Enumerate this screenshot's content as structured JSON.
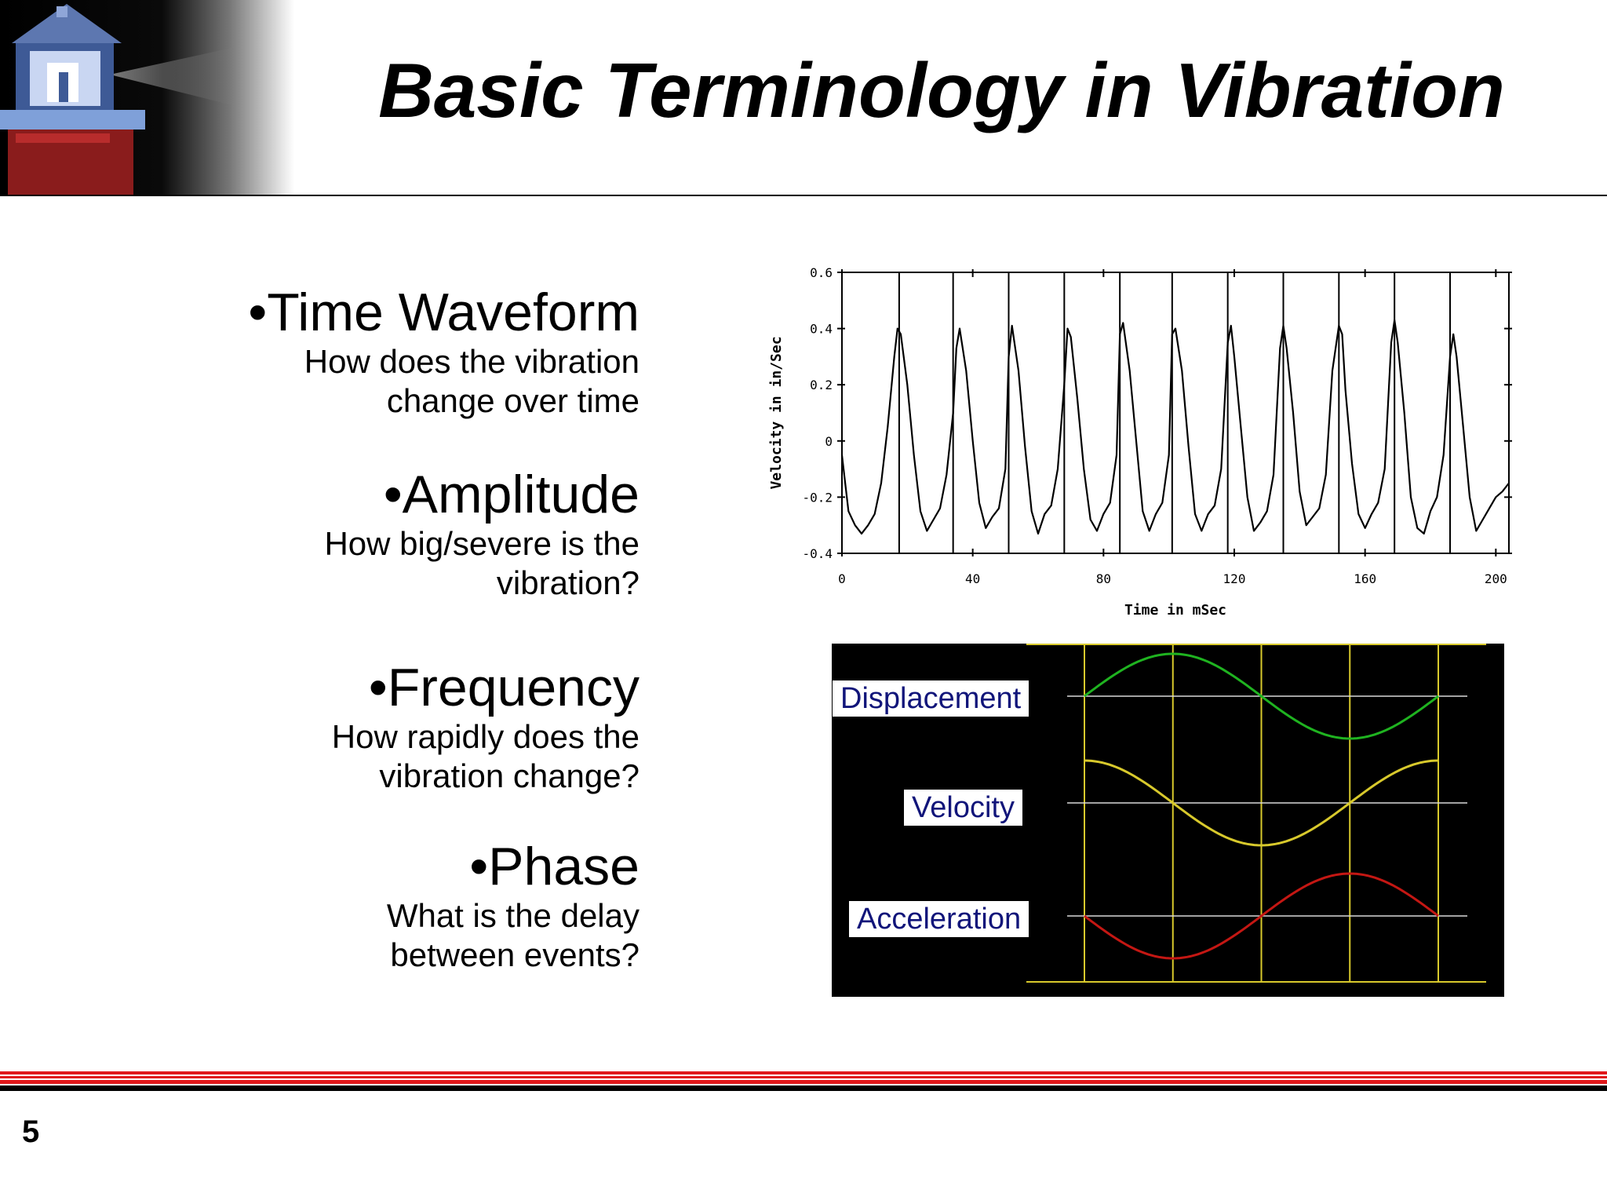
{
  "slide": {
    "title": "Basic Terminology in Vibration",
    "page_number": "5"
  },
  "colors": {
    "footer_red": "#e0181b",
    "footer_black": "#000000",
    "label_text": "#11157a",
    "displacement_curve": "#1fb320",
    "velocity_curve": "#d8c92c",
    "acceleration_curve": "#c41713",
    "grid_line": "#d8c92c"
  },
  "bullets": [
    {
      "heading": "•Time Waveform",
      "lines": [
        "How does the vibration",
        "change over time"
      ]
    },
    {
      "heading": "•Amplitude",
      "lines": [
        "How big/severe is the",
        "vibration?"
      ]
    },
    {
      "heading": "•Frequency",
      "lines": [
        "How rapidly does the",
        "vibration change?"
      ]
    },
    {
      "heading": "•Phase",
      "lines": [
        "What is the delay",
        "between events?"
      ]
    }
  ],
  "chart_data": [
    {
      "type": "line",
      "title": "",
      "xlabel": "Time in mSec",
      "ylabel": "Velocity in in/Sec",
      "xlim": [
        0,
        204
      ],
      "ylim": [
        -0.4,
        0.6
      ],
      "x_ticks": [
        0,
        40,
        80,
        120,
        160,
        200
      ],
      "y_ticks": [
        0.6,
        0.4,
        0.2,
        0,
        -0.2,
        -0.4
      ],
      "x_tick_labels": [
        "0",
        "40",
        "80",
        "120",
        "160",
        "200"
      ],
      "y_tick_labels": [
        "0.6",
        "0.4",
        "0.2",
        "0",
        "-0.2",
        "-0.4"
      ],
      "period_markers_x": [
        17.5,
        34,
        51,
        68,
        85,
        101,
        118,
        135,
        152,
        169,
        186
      ],
      "series": [
        {
          "x": [
            0,
            2,
            4,
            6,
            8,
            10,
            12,
            14,
            16,
            17,
            18,
            20,
            22,
            24,
            26,
            28,
            30,
            32,
            34,
            35,
            36,
            38,
            40,
            42,
            44,
            46,
            48,
            50,
            51,
            52,
            54,
            56,
            58,
            60,
            62,
            64,
            66,
            68,
            69,
            70,
            72,
            74,
            76,
            78,
            80,
            82,
            84,
            85,
            86,
            88,
            90,
            92,
            94,
            96,
            98,
            100,
            101,
            102,
            104,
            106,
            108,
            110,
            112,
            114,
            116,
            118,
            119,
            120,
            122,
            124,
            126,
            128,
            130,
            132,
            134,
            135,
            136,
            138,
            140,
            142,
            144,
            146,
            148,
            150,
            152,
            153,
            154,
            156,
            158,
            160,
            162,
            164,
            166,
            168,
            169,
            170,
            172,
            174,
            176,
            178,
            180,
            182,
            184,
            186,
            187,
            188,
            190,
            192,
            194,
            196,
            198,
            200,
            202,
            204
          ],
          "values": [
            -0.05,
            -0.25,
            -0.3,
            -0.33,
            -0.3,
            -0.26,
            -0.15,
            0.05,
            0.3,
            0.4,
            0.38,
            0.2,
            -0.05,
            -0.25,
            -0.32,
            -0.28,
            -0.24,
            -0.12,
            0.1,
            0.33,
            0.4,
            0.25,
            0.0,
            -0.22,
            -0.31,
            -0.27,
            -0.24,
            -0.1,
            0.3,
            0.41,
            0.25,
            -0.02,
            -0.25,
            -0.33,
            -0.26,
            -0.23,
            -0.1,
            0.2,
            0.4,
            0.37,
            0.15,
            -0.1,
            -0.28,
            -0.32,
            -0.26,
            -0.22,
            -0.05,
            0.38,
            0.42,
            0.25,
            0.0,
            -0.25,
            -0.32,
            -0.26,
            -0.22,
            -0.05,
            0.38,
            0.4,
            0.25,
            -0.02,
            -0.26,
            -0.32,
            -0.26,
            -0.23,
            -0.1,
            0.35,
            0.41,
            0.3,
            0.05,
            -0.2,
            -0.32,
            -0.29,
            -0.25,
            -0.12,
            0.33,
            0.41,
            0.33,
            0.1,
            -0.18,
            -0.3,
            -0.27,
            -0.24,
            -0.12,
            0.25,
            0.41,
            0.38,
            0.18,
            -0.08,
            -0.26,
            -0.31,
            -0.26,
            -0.22,
            -0.1,
            0.35,
            0.43,
            0.35,
            0.1,
            -0.2,
            -0.31,
            -0.33,
            -0.25,
            -0.2,
            -0.05,
            0.3,
            0.38,
            0.3,
            0.05,
            -0.2,
            -0.32,
            -0.28,
            -0.24,
            -0.2,
            -0.18,
            -0.15
          ]
        }
      ]
    },
    {
      "type": "line",
      "title": "",
      "series": [
        {
          "name": "Displacement",
          "function": "sin",
          "phase_deg": 0
        },
        {
          "name": "Velocity",
          "function": "cos",
          "phase_deg": 90
        },
        {
          "name": "Acceleration",
          "function": "-sin",
          "phase_deg": 180
        }
      ],
      "x_period_fraction": [
        0,
        0.25,
        0.5,
        0.75,
        1.0
      ]
    }
  ]
}
